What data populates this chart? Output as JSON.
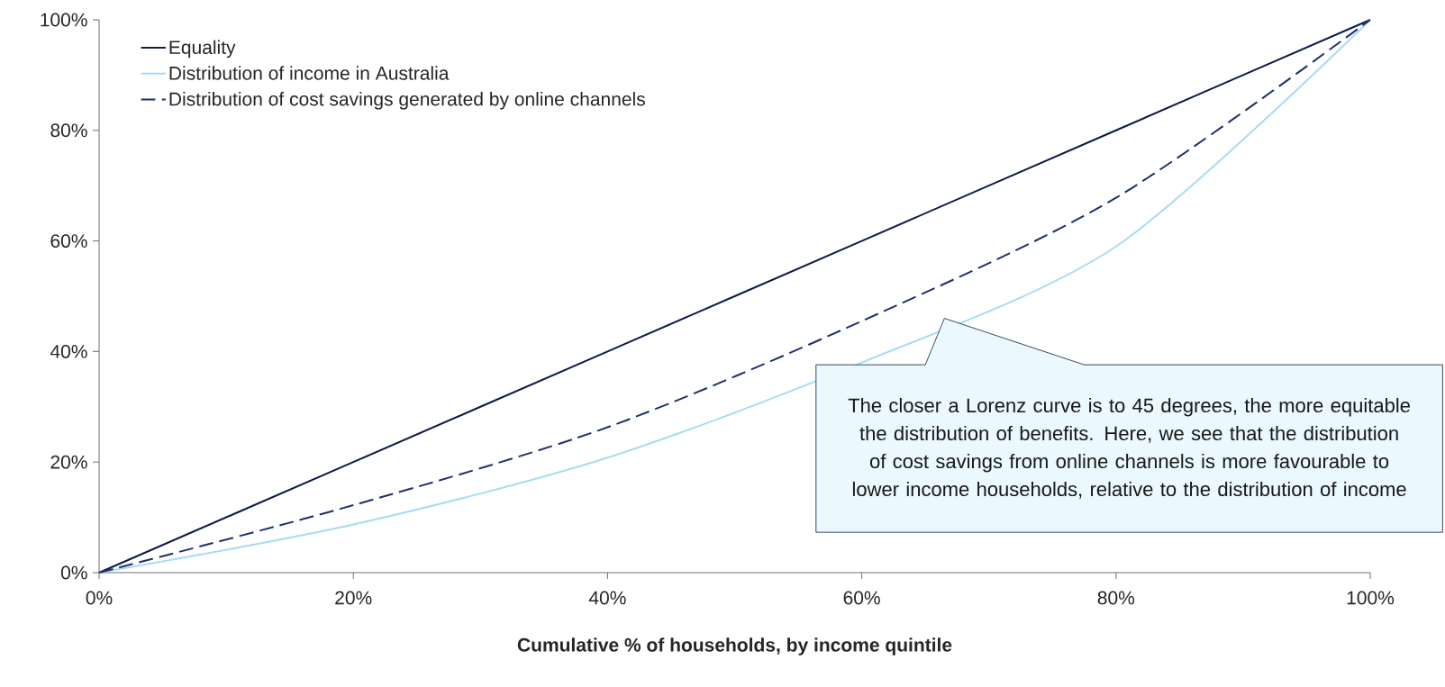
{
  "chart_data": {
    "type": "line",
    "xlabel": "Cumulative % of households, by income quintile",
    "x": [
      0,
      20,
      40,
      60,
      80,
      100
    ],
    "series": [
      {
        "name": "Equality",
        "color": "#0d1a4a",
        "line_style": "solid",
        "values": [
          0,
          20,
          40,
          60,
          80,
          100
        ]
      },
      {
        "name": "Distribution of income in Australia",
        "color": "#a6dcf3",
        "line_style": "solid",
        "values": [
          0,
          8.7,
          20.8,
          38,
          59,
          100
        ]
      },
      {
        "name": "Distribution of cost savings generated by online channels",
        "color": "#1f2f6e",
        "line_style": "dashed",
        "values": [
          0,
          12.2,
          26.3,
          45.5,
          67.8,
          100
        ]
      }
    ],
    "xlim": [
      0,
      100
    ],
    "ylim": [
      0,
      100
    ],
    "xticks": [
      {
        "value": 0,
        "label": "0%"
      },
      {
        "value": 20,
        "label": "20%"
      },
      {
        "value": 40,
        "label": "40%"
      },
      {
        "value": 60,
        "label": "60%"
      },
      {
        "value": 80,
        "label": "80%"
      },
      {
        "value": 100,
        "label": "100%"
      }
    ],
    "yticks": [
      {
        "value": 0,
        "label": "0%"
      },
      {
        "value": 20,
        "label": "20%"
      },
      {
        "value": 40,
        "label": "40%"
      },
      {
        "value": 60,
        "label": "60%"
      },
      {
        "value": 80,
        "label": "80%"
      },
      {
        "value": 100,
        "label": "100%"
      }
    ],
    "legend": "top left",
    "grid": false,
    "marker": "none",
    "annotations": [
      "The closer a Lorenz curve is to 45 degrees, the more equitable the distribution of benefits. Here, we see that the distribution of cost savings from online channels is more favourable to lower income households, relative to the distribution of income"
    ]
  }
}
